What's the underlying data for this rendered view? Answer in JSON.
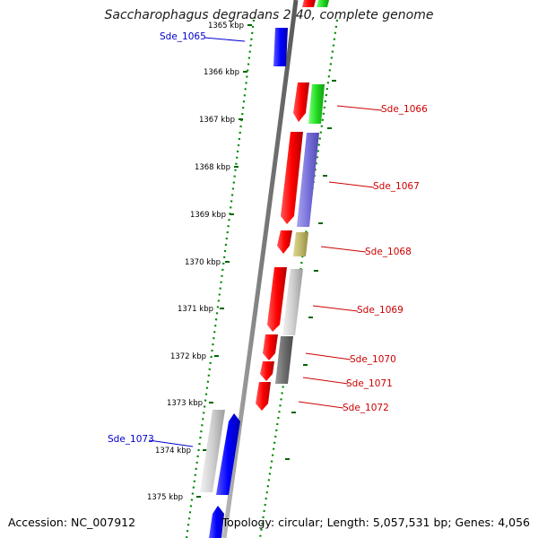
{
  "title": "Saccharophagus degradans 2-40, complete genome",
  "accession": "Accession: NC_007912",
  "summary": "Topology: circular; Length: 5,057,531 bp; Genes: 4,056",
  "colors": {
    "forward_gene": "#0000ee",
    "reverse_gene": "#ee0000",
    "backbone": "#808080",
    "ticks": "#008800",
    "forward_label": "#0000cc",
    "reverse_label": "#cc0000"
  },
  "scale": {
    "unit": "kbp",
    "ticks": [
      {
        "label": "1365 kbp"
      },
      {
        "label": "1366 kbp"
      },
      {
        "label": "1367 kbp"
      },
      {
        "label": "1368 kbp"
      },
      {
        "label": "1369 kbp"
      },
      {
        "label": "1370 kbp"
      },
      {
        "label": "1371 kbp"
      },
      {
        "label": "1372 kbp"
      },
      {
        "label": "1373 kbp"
      },
      {
        "label": "1374 kbp"
      },
      {
        "label": "1375 kbp"
      }
    ]
  },
  "gene_labels": [
    {
      "name": "Sde_1065",
      "strand": "forward"
    },
    {
      "name": "Sde_1066",
      "strand": "reverse"
    },
    {
      "name": "Sde_1067",
      "strand": "reverse"
    },
    {
      "name": "Sde_1068",
      "strand": "reverse"
    },
    {
      "name": "Sde_1069",
      "strand": "reverse"
    },
    {
      "name": "Sde_1070",
      "strand": "reverse"
    },
    {
      "name": "Sde_1071",
      "strand": "reverse"
    },
    {
      "name": "Sde_1072",
      "strand": "reverse"
    },
    {
      "name": "Sde_1073",
      "strand": "forward"
    }
  ]
}
